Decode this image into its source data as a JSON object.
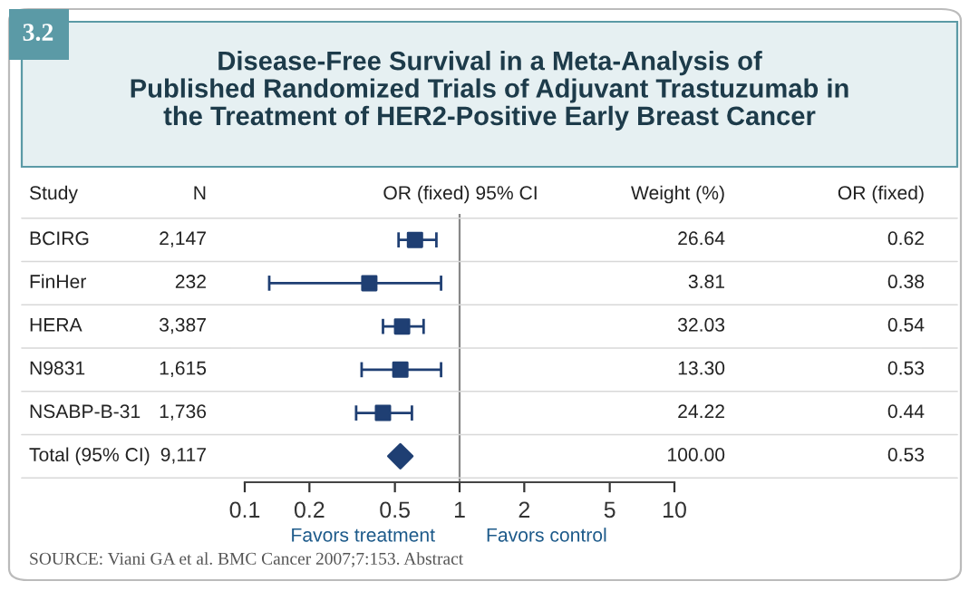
{
  "chart_data": {
    "type": "scatter",
    "orientation": "horizontal",
    "title": "Disease-Free Survival in a Meta-Analysis of\nPublished Randomized Trials of Adjuvant Trastuzumab in\nthe Treatment of HER2-Positive Early Breast Cancer",
    "categories": [
      "BCIRG",
      "FinHer",
      "HERA",
      "N9831",
      "NSABP-B-31",
      "Total (95% CI)"
    ],
    "series": [
      {
        "color": "#1f3f73",
        "marker": "square",
        "values": [
          0.62,
          0.38,
          0.54,
          0.53,
          0.44,
          null
        ],
        "errors": [
          [
            0.52,
            0.78
          ],
          [
            0.13,
            0.82
          ],
          [
            0.44,
            0.68
          ],
          [
            0.35,
            0.82
          ],
          [
            0.33,
            0.6
          ],
          null
        ]
      },
      {
        "color": "#1f3f73",
        "marker": "diamond",
        "values": [
          null,
          null,
          null,
          null,
          null,
          0.53
        ]
      }
    ],
    "log": "x",
    "xlim": [
      0.1,
      10
    ],
    "xticks": [
      0.1,
      0.2,
      0.5,
      1,
      2,
      5,
      10
    ],
    "ref_lines": [
      {
        "axis": "x",
        "value": 1,
        "color": "#888888"
      }
    ],
    "annotations": [
      "3.2",
      "Study",
      "N",
      "OR (fixed) 95% CI",
      "Weight (%)",
      "OR (fixed)",
      "Favors treatment",
      "Favors control",
      "SOURCE: Viani GA et al. BMC Cancer 2007;7:153. Abstract",
      "2,147",
      "26.64",
      "0.62",
      "232",
      "3.81",
      "0.38",
      "3,387",
      "32.03",
      "0.54",
      "1,615",
      "13.30",
      "0.53",
      "1,736",
      "24.22",
      "0.44",
      "9,117",
      "100.00",
      "0.53"
    ]
  }
}
